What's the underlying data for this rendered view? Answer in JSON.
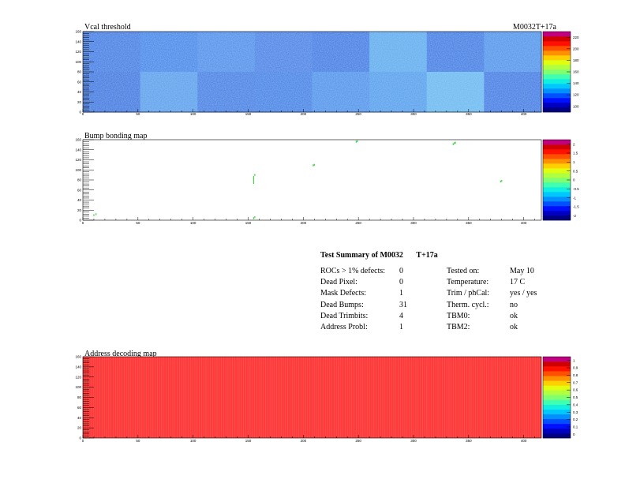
{
  "colors": {
    "hot": "#ff3a3a",
    "panel_border": "#000000",
    "background": "#ffffff"
  },
  "chart_data": [
    {
      "type": "heatmap",
      "title": "Vcal threshold",
      "corner_label": "M0032T+17a",
      "x_ticks": [
        0,
        50,
        100,
        150,
        200,
        250,
        300,
        350,
        400
      ],
      "xlim": [
        0,
        416
      ],
      "y_ticks": [
        0,
        20,
        40,
        60,
        80,
        100,
        120,
        140,
        160
      ],
      "ylim": [
        0,
        160
      ],
      "grid": false,
      "colorbar_ticks": [
        "100",
        "120",
        "140",
        "160",
        "180",
        "200",
        "220"
      ],
      "module_layout": {
        "columns": 8,
        "rows": 2
      },
      "roc_tones": [
        [
          "#3d6fe0",
          "#3f7be6",
          "#4a84e8",
          "#4475e3",
          "#3b6ee0",
          "#5aa4ec",
          "#3b6fe0",
          "#4c8ae8"
        ],
        [
          "#3a6adc",
          "#5696ea",
          "#3f72e0",
          "#3e75e2",
          "#4a88e8",
          "#4f95ea",
          "#66b3ee",
          "#3c6ee0"
        ]
      ]
    },
    {
      "type": "heatmap",
      "title": "Bump bonding map",
      "x_ticks": [
        0,
        50,
        100,
        150,
        200,
        250,
        300,
        350,
        400
      ],
      "xlim": [
        0,
        416
      ],
      "y_ticks": [
        0,
        20,
        40,
        60,
        80,
        100,
        120,
        140,
        160
      ],
      "ylim": [
        0,
        160
      ],
      "grid": false,
      "colorbar_ticks": [
        "-2",
        "-1.5",
        "-1",
        "-0.5",
        "0",
        "0.5",
        "1",
        "1.5",
        "2"
      ],
      "defect_pixels": [
        [
          155,
          74
        ],
        [
          155,
          78
        ],
        [
          155,
          82
        ],
        [
          155,
          86
        ],
        [
          156,
          90
        ],
        [
          155,
          4
        ],
        [
          156,
          6
        ],
        [
          209,
          109
        ],
        [
          210,
          110
        ],
        [
          248,
          156
        ],
        [
          249,
          157
        ],
        [
          336,
          151
        ],
        [
          337,
          153
        ],
        [
          338,
          154
        ],
        [
          379,
          77
        ],
        [
          380,
          78
        ],
        [
          10,
          10
        ],
        [
          12,
          12
        ]
      ]
    },
    {
      "type": "heatmap",
      "title": "Address decoding map",
      "x_ticks": [
        0,
        50,
        100,
        150,
        200,
        250,
        300,
        350,
        400
      ],
      "xlim": [
        0,
        416
      ],
      "y_ticks": [
        0,
        20,
        40,
        60,
        80,
        100,
        120,
        140,
        160
      ],
      "ylim": [
        0,
        160
      ],
      "grid": false,
      "colorbar_ticks": [
        "0",
        "0.1",
        "0.2",
        "0.3",
        "0.4",
        "0.5",
        "0.6",
        "0.7",
        "0.8",
        "0.9",
        "1"
      ],
      "fill_value": 1
    }
  ],
  "summary": {
    "title_left": "Test Summary of M0032",
    "title_right": "T+17a",
    "rows": [
      {
        "label": "ROCs > 1% defects:",
        "value": "0",
        "label2": "Tested on:",
        "value2": "May 10"
      },
      {
        "label": "Dead Pixel:",
        "value": "0",
        "label2": "Temperature:",
        "value2": "17 C"
      },
      {
        "label": "Mask Defects:",
        "value": "1",
        "label2": "Trim / phCal:",
        "value2": "yes / yes"
      },
      {
        "label": "Dead Bumps:",
        "value": "31",
        "label2": "Therm. cycl.:",
        "value2": "no"
      },
      {
        "label": "Dead Trimbits:",
        "value": "4",
        "label2": "TBM0:",
        "value2": "ok"
      },
      {
        "label": "Address Probl:",
        "value": "1",
        "label2": "TBM2:",
        "value2": "ok"
      }
    ]
  }
}
